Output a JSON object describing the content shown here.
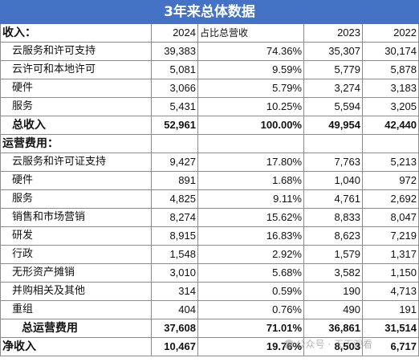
{
  "title": "3年来总体数据",
  "header": {
    "revenue_section": "收入：",
    "col_2024": "2024",
    "col_pct": "占比总营收",
    "col_2023": "2023",
    "col_2022": "2022"
  },
  "revenue": [
    {
      "label": "云服务和许可支持",
      "y2024": "39,383",
      "pct": "74.36%",
      "y2023": "35,307",
      "y2022": "30,174"
    },
    {
      "label": "云许可和本地许可",
      "y2024": "5,081",
      "pct": "9.59%",
      "y2023": "5,779",
      "y2022": "5,878"
    },
    {
      "label": "硬件",
      "y2024": "3,066",
      "pct": "5.79%",
      "y2023": "3,274",
      "y2022": "3,183"
    },
    {
      "label": "服务",
      "y2024": "5,431",
      "pct": "10.25%",
      "y2023": "5,594",
      "y2022": "3,205"
    }
  ],
  "total_revenue": {
    "label": "总收入",
    "y2024": "52,961",
    "pct": "100.00%",
    "y2023": "49,954",
    "y2022": "42,440"
  },
  "opex_section": "运营费用：",
  "opex": [
    {
      "label": "云服务和许可证支持",
      "y2024": "9,427",
      "pct": "17.80%",
      "y2023": "7,763",
      "y2022": "5,213"
    },
    {
      "label": "硬件",
      "y2024": "891",
      "pct": "1.68%",
      "y2023": "1,040",
      "y2022": "972"
    },
    {
      "label": "服务",
      "y2024": "4,825",
      "pct": "9.11%",
      "y2023": "4,761",
      "y2022": "2,692"
    },
    {
      "label": "销售和市场营销",
      "y2024": "8,274",
      "pct": "15.62%",
      "y2023": "8,833",
      "y2022": "8,047"
    },
    {
      "label": "研发",
      "y2024": "8,915",
      "pct": "16.83%",
      "y2023": "8,623",
      "y2022": "7,219"
    },
    {
      "label": "行政",
      "y2024": "1,548",
      "pct": "2.92%",
      "y2023": "1,579",
      "y2022": "1,317"
    },
    {
      "label": "无形资产摊销",
      "y2024": "3,010",
      "pct": "5.68%",
      "y2023": "3,582",
      "y2022": "1,150"
    },
    {
      "label": "并购相关及其他",
      "y2024": "314",
      "pct": "0.59%",
      "y2023": "190",
      "y2022": "4,713"
    },
    {
      "label": "重组",
      "y2024": "404",
      "pct": "0.76%",
      "y2023": "490",
      "y2022": "191"
    }
  ],
  "total_opex": {
    "label": "总运营费用",
    "y2024": "37,608",
    "pct": "71.01%",
    "y2023": "36,861",
    "y2022": "31,514"
  },
  "net_income": {
    "label": "净收入",
    "y2024": "10,467",
    "pct": "19.76%",
    "y2023": "8,503",
    "y2022": "6,717"
  },
  "watermark": "公众号 · 天下观看"
}
